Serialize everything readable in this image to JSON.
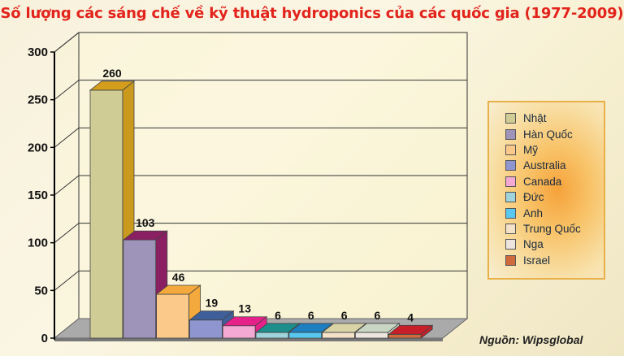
{
  "chart_data": {
    "type": "bar",
    "title": "Số lượng các sáng chế về kỹ thuật hydroponics của các quốc gia (1977-2009)",
    "categories": [
      "Nhật",
      "Hàn Quốc",
      "Mỹ",
      "Australia",
      "Canada",
      "Đức",
      "Anh",
      "Trung Quốc",
      "Nga",
      "Israel"
    ],
    "values": [
      260,
      103,
      46,
      19,
      13,
      6,
      6,
      6,
      6,
      4
    ],
    "value_labels": [
      "260",
      "103",
      "46",
      "19",
      "13",
      "6",
      "6",
      "6",
      "6",
      "4"
    ],
    "colors": [
      "#cfcc96",
      "#9e93b8",
      "#fbc98a",
      "#8f95cf",
      "#f4a8d4",
      "#9fd4dc",
      "#59c8f0",
      "#f3e2c8",
      "#ece6df",
      "#cf6a3c"
    ],
    "side_colors": [
      "#c99a1e",
      "#8a1f62",
      "#ffffff",
      "#ffffff",
      "#ffffff",
      "#ffffff",
      "#ffffff",
      "#ffffff",
      "#ffffff",
      "#ffffff"
    ],
    "top_colors": [
      "#d49e1c",
      "#8a1f62",
      "#f3a93c",
      "#3f5f9a",
      "#e6228a",
      "#1c8f8c",
      "#1c7fc0",
      "#d9d4a6",
      "#c9d6c4",
      "#c81e2a"
    ],
    "yticks": [
      0,
      50,
      100,
      150,
      200,
      250,
      300
    ],
    "ytick_labels": [
      "0",
      "50",
      "100",
      "150",
      "200",
      "250",
      "300"
    ],
    "ylim": [
      0,
      300
    ],
    "legend_position": "right",
    "grid": true,
    "xlabel": "",
    "ylabel": ""
  },
  "source": {
    "label": "Nguồn:",
    "value": "Wipsglobal"
  }
}
